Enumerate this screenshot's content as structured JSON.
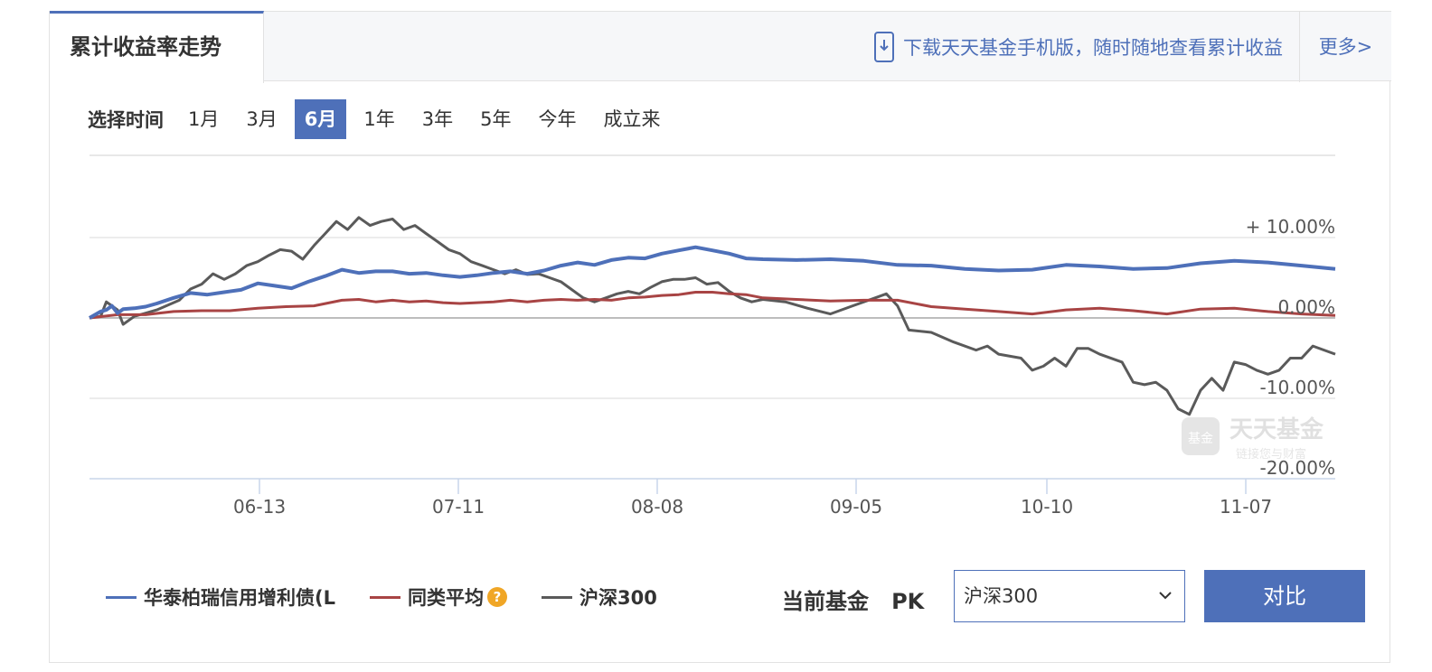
{
  "header": {
    "tab_label": "累计收益率走势",
    "download_text": "下载天天基金手机版，随时随地查看累计收益",
    "more_label": "更多>"
  },
  "time_selector": {
    "label": "选择时间",
    "options": [
      "1月",
      "3月",
      "6月",
      "1年",
      "3年",
      "5年",
      "今年",
      "成立来"
    ],
    "selected": "6月"
  },
  "legend": {
    "fund": "华泰柏瑞信用增利债(L",
    "category_avg": "同类平均",
    "index": "沪深300",
    "help_icon": "question-icon"
  },
  "pk": {
    "label": "当前基金   PK",
    "selected_value": "沪深300",
    "button_label": "对比"
  },
  "watermark": {
    "text": "天天基金",
    "subtext": "链接您与财富"
  },
  "colors": {
    "accent": "#4e70b9",
    "fund": "#4e70b9",
    "category_avg": "#a84444",
    "index": "#5a5a5a"
  },
  "chart_data": {
    "type": "line",
    "x_ticks": [
      "06-13",
      "07-11",
      "08-08",
      "09-05",
      "10-10",
      "11-07"
    ],
    "y_ticks": [
      "+ 10.00%",
      "0.00%",
      "-10.00%",
      "-20.00%"
    ],
    "y_tick_values": [
      10,
      0,
      -10,
      -20
    ],
    "ylim": [
      -20,
      20
    ],
    "grid": true,
    "series": [
      {
        "name": "华泰柏瑞信用增利债(L",
        "color": "#4e70b9",
        "points": [
          [
            0,
            0
          ],
          [
            2,
            0.8
          ],
          [
            3,
            1
          ],
          [
            4,
            1.5
          ],
          [
            5,
            0.6
          ],
          [
            6,
            1.1
          ],
          [
            8,
            1.2
          ],
          [
            10,
            1.4
          ],
          [
            12,
            1.8
          ],
          [
            15,
            2.5
          ],
          [
            18,
            3.1
          ],
          [
            21,
            2.9
          ],
          [
            24,
            3.2
          ],
          [
            27,
            3.5
          ],
          [
            30,
            4.3
          ],
          [
            33,
            4.0
          ],
          [
            36,
            3.7
          ],
          [
            39,
            4.5
          ],
          [
            42,
            5.2
          ],
          [
            45,
            6.0
          ],
          [
            48,
            5.6
          ],
          [
            51,
            5.8
          ],
          [
            54,
            5.8
          ],
          [
            57,
            5.5
          ],
          [
            60,
            5.6
          ],
          [
            63,
            5.3
          ],
          [
            66,
            5.1
          ],
          [
            69,
            5.3
          ],
          [
            72,
            5.6
          ],
          [
            75,
            5.8
          ],
          [
            78,
            5.5
          ],
          [
            81,
            5.9
          ],
          [
            84,
            6.5
          ],
          [
            87,
            6.9
          ],
          [
            90,
            6.6
          ],
          [
            93,
            7.2
          ],
          [
            96,
            7.5
          ],
          [
            99,
            7.4
          ],
          [
            102,
            8.0
          ],
          [
            105,
            8.4
          ],
          [
            108,
            8.8
          ],
          [
            111,
            8.4
          ],
          [
            114,
            8.0
          ],
          [
            117,
            7.4
          ],
          [
            120,
            7.3
          ],
          [
            126,
            7.2
          ],
          [
            132,
            7.3
          ],
          [
            138,
            7.1
          ],
          [
            144,
            6.6
          ],
          [
            150,
            6.5
          ],
          [
            156,
            6.1
          ],
          [
            162,
            5.9
          ],
          [
            168,
            6.0
          ],
          [
            174,
            6.6
          ],
          [
            180,
            6.4
          ],
          [
            186,
            6.1
          ],
          [
            192,
            6.2
          ],
          [
            198,
            6.8
          ],
          [
            204,
            7.1
          ],
          [
            210,
            6.9
          ],
          [
            216,
            6.5
          ],
          [
            222,
            6.1
          ]
        ]
      },
      {
        "name": "同类平均",
        "color": "#a84444",
        "points": [
          [
            0,
            0
          ],
          [
            5,
            0.4
          ],
          [
            10,
            0.4
          ],
          [
            15,
            0.8
          ],
          [
            20,
            0.9
          ],
          [
            25,
            0.9
          ],
          [
            30,
            1.2
          ],
          [
            35,
            1.4
          ],
          [
            40,
            1.5
          ],
          [
            45,
            2.2
          ],
          [
            48,
            2.3
          ],
          [
            51,
            2.0
          ],
          [
            54,
            2.2
          ],
          [
            57,
            2.0
          ],
          [
            60,
            2.1
          ],
          [
            63,
            1.9
          ],
          [
            66,
            1.8
          ],
          [
            69,
            1.9
          ],
          [
            72,
            2.0
          ],
          [
            75,
            2.2
          ],
          [
            78,
            2.0
          ],
          [
            81,
            2.2
          ],
          [
            84,
            2.3
          ],
          [
            87,
            2.2
          ],
          [
            90,
            2.3
          ],
          [
            93,
            2.2
          ],
          [
            96,
            2.5
          ],
          [
            99,
            2.6
          ],
          [
            102,
            2.8
          ],
          [
            105,
            2.9
          ],
          [
            108,
            3.2
          ],
          [
            111,
            3.2
          ],
          [
            114,
            3.0
          ],
          [
            117,
            2.9
          ],
          [
            120,
            2.5
          ],
          [
            126,
            2.3
          ],
          [
            132,
            2.1
          ],
          [
            138,
            2.2
          ],
          [
            144,
            2.2
          ],
          [
            150,
            1.4
          ],
          [
            156,
            1.1
          ],
          [
            162,
            0.8
          ],
          [
            168,
            0.5
          ],
          [
            174,
            1.0
          ],
          [
            180,
            1.2
          ],
          [
            186,
            0.9
          ],
          [
            192,
            0.5
          ],
          [
            198,
            1.1
          ],
          [
            204,
            1.2
          ],
          [
            210,
            0.8
          ],
          [
            216,
            0.5
          ],
          [
            222,
            0.3
          ]
        ]
      },
      {
        "name": "沪深300",
        "color": "#5a5a5a",
        "points": [
          [
            0,
            0
          ],
          [
            2,
            0.2
          ],
          [
            3,
            2.0
          ],
          [
            4,
            1.5
          ],
          [
            5,
            1.0
          ],
          [
            6,
            -0.8
          ],
          [
            8,
            0.2
          ],
          [
            10,
            0.6
          ],
          [
            12,
            1.0
          ],
          [
            14,
            1.6
          ],
          [
            16,
            2.2
          ],
          [
            18,
            3.6
          ],
          [
            20,
            4.2
          ],
          [
            22,
            5.5
          ],
          [
            24,
            4.8
          ],
          [
            26,
            5.5
          ],
          [
            28,
            6.5
          ],
          [
            30,
            7.0
          ],
          [
            32,
            7.8
          ],
          [
            34,
            8.5
          ],
          [
            36,
            8.3
          ],
          [
            38,
            7.3
          ],
          [
            40,
            9.0
          ],
          [
            42,
            10.5
          ],
          [
            44,
            12.0
          ],
          [
            46,
            11.0
          ],
          [
            48,
            12.5
          ],
          [
            50,
            11.5
          ],
          [
            52,
            12.0
          ],
          [
            54,
            12.3
          ],
          [
            56,
            11.0
          ],
          [
            58,
            11.5
          ],
          [
            60,
            10.5
          ],
          [
            62,
            9.5
          ],
          [
            64,
            8.5
          ],
          [
            66,
            8.0
          ],
          [
            68,
            7.0
          ],
          [
            70,
            6.5
          ],
          [
            72,
            6.0
          ],
          [
            74,
            5.5
          ],
          [
            76,
            6.0
          ],
          [
            78,
            5.4
          ],
          [
            80,
            5.5
          ],
          [
            82,
            5.0
          ],
          [
            84,
            4.5
          ],
          [
            86,
            3.5
          ],
          [
            88,
            2.5
          ],
          [
            90,
            2.0
          ],
          [
            92,
            2.5
          ],
          [
            94,
            3.0
          ],
          [
            96,
            3.3
          ],
          [
            98,
            3.0
          ],
          [
            100,
            3.8
          ],
          [
            102,
            4.5
          ],
          [
            104,
            4.8
          ],
          [
            106,
            4.8
          ],
          [
            108,
            5.0
          ],
          [
            110,
            4.2
          ],
          [
            112,
            4.4
          ],
          [
            114,
            3.3
          ],
          [
            116,
            2.5
          ],
          [
            118,
            2.0
          ],
          [
            120,
            2.3
          ],
          [
            124,
            2.0
          ],
          [
            128,
            1.2
          ],
          [
            132,
            0.5
          ],
          [
            136,
            1.5
          ],
          [
            140,
            2.5
          ],
          [
            142,
            3.0
          ],
          [
            144,
            1.5
          ],
          [
            146,
            -1.5
          ],
          [
            150,
            -1.8
          ],
          [
            154,
            -3.0
          ],
          [
            158,
            -4.0
          ],
          [
            160,
            -3.5
          ],
          [
            162,
            -4.5
          ],
          [
            166,
            -5.0
          ],
          [
            168,
            -6.5
          ],
          [
            170,
            -6.0
          ],
          [
            172,
            -5.0
          ],
          [
            174,
            -6.0
          ],
          [
            176,
            -3.8
          ],
          [
            178,
            -3.8
          ],
          [
            180,
            -4.5
          ],
          [
            184,
            -5.5
          ],
          [
            186,
            -8.0
          ],
          [
            188,
            -8.3
          ],
          [
            190,
            -8.0
          ],
          [
            192,
            -9.0
          ],
          [
            194,
            -11.3
          ],
          [
            196,
            -12.0
          ],
          [
            198,
            -9.0
          ],
          [
            200,
            -7.5
          ],
          [
            202,
            -9.0
          ],
          [
            204,
            -5.5
          ],
          [
            206,
            -5.8
          ],
          [
            208,
            -6.5
          ],
          [
            210,
            -7.0
          ],
          [
            212,
            -6.5
          ],
          [
            214,
            -5.0
          ],
          [
            216,
            -5.0
          ],
          [
            218,
            -3.5
          ],
          [
            220,
            -4.0
          ],
          [
            222,
            -4.5
          ]
        ]
      }
    ]
  }
}
